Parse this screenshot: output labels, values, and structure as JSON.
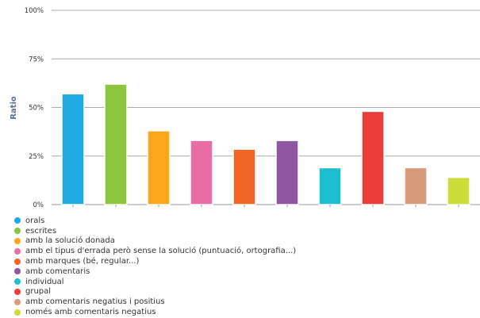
{
  "chart_data": {
    "type": "bar",
    "ylabel": "Ratio",
    "ylim": [
      0,
      100
    ],
    "y_ticks": [
      "0%",
      "25%",
      "50%",
      "75%",
      "100%"
    ],
    "y_tick_values": [
      0,
      25,
      50,
      75,
      100
    ],
    "grid": true,
    "legend_placement": "bottom-left",
    "categories": [
      "orals",
      "escrites",
      "amb la solució donada",
      "amb el tipus d'errada però sense la solució (puntuació, ortografia...)",
      "amb marques (bé, regular...)",
      "amb comentaris",
      "individual",
      "grupal",
      "amb comentaris negatius i positius",
      "només amb comentaris negatius"
    ],
    "values": [
      57,
      62,
      38,
      33,
      28.5,
      33,
      19,
      48,
      19,
      14
    ],
    "colors": [
      "#1ea9e1",
      "#8cc53f",
      "#fba71b",
      "#e96ea8",
      "#f26524",
      "#8f56a1",
      "#1cbecf",
      "#ed3d3a",
      "#d89a7b",
      "#cddc39"
    ]
  }
}
